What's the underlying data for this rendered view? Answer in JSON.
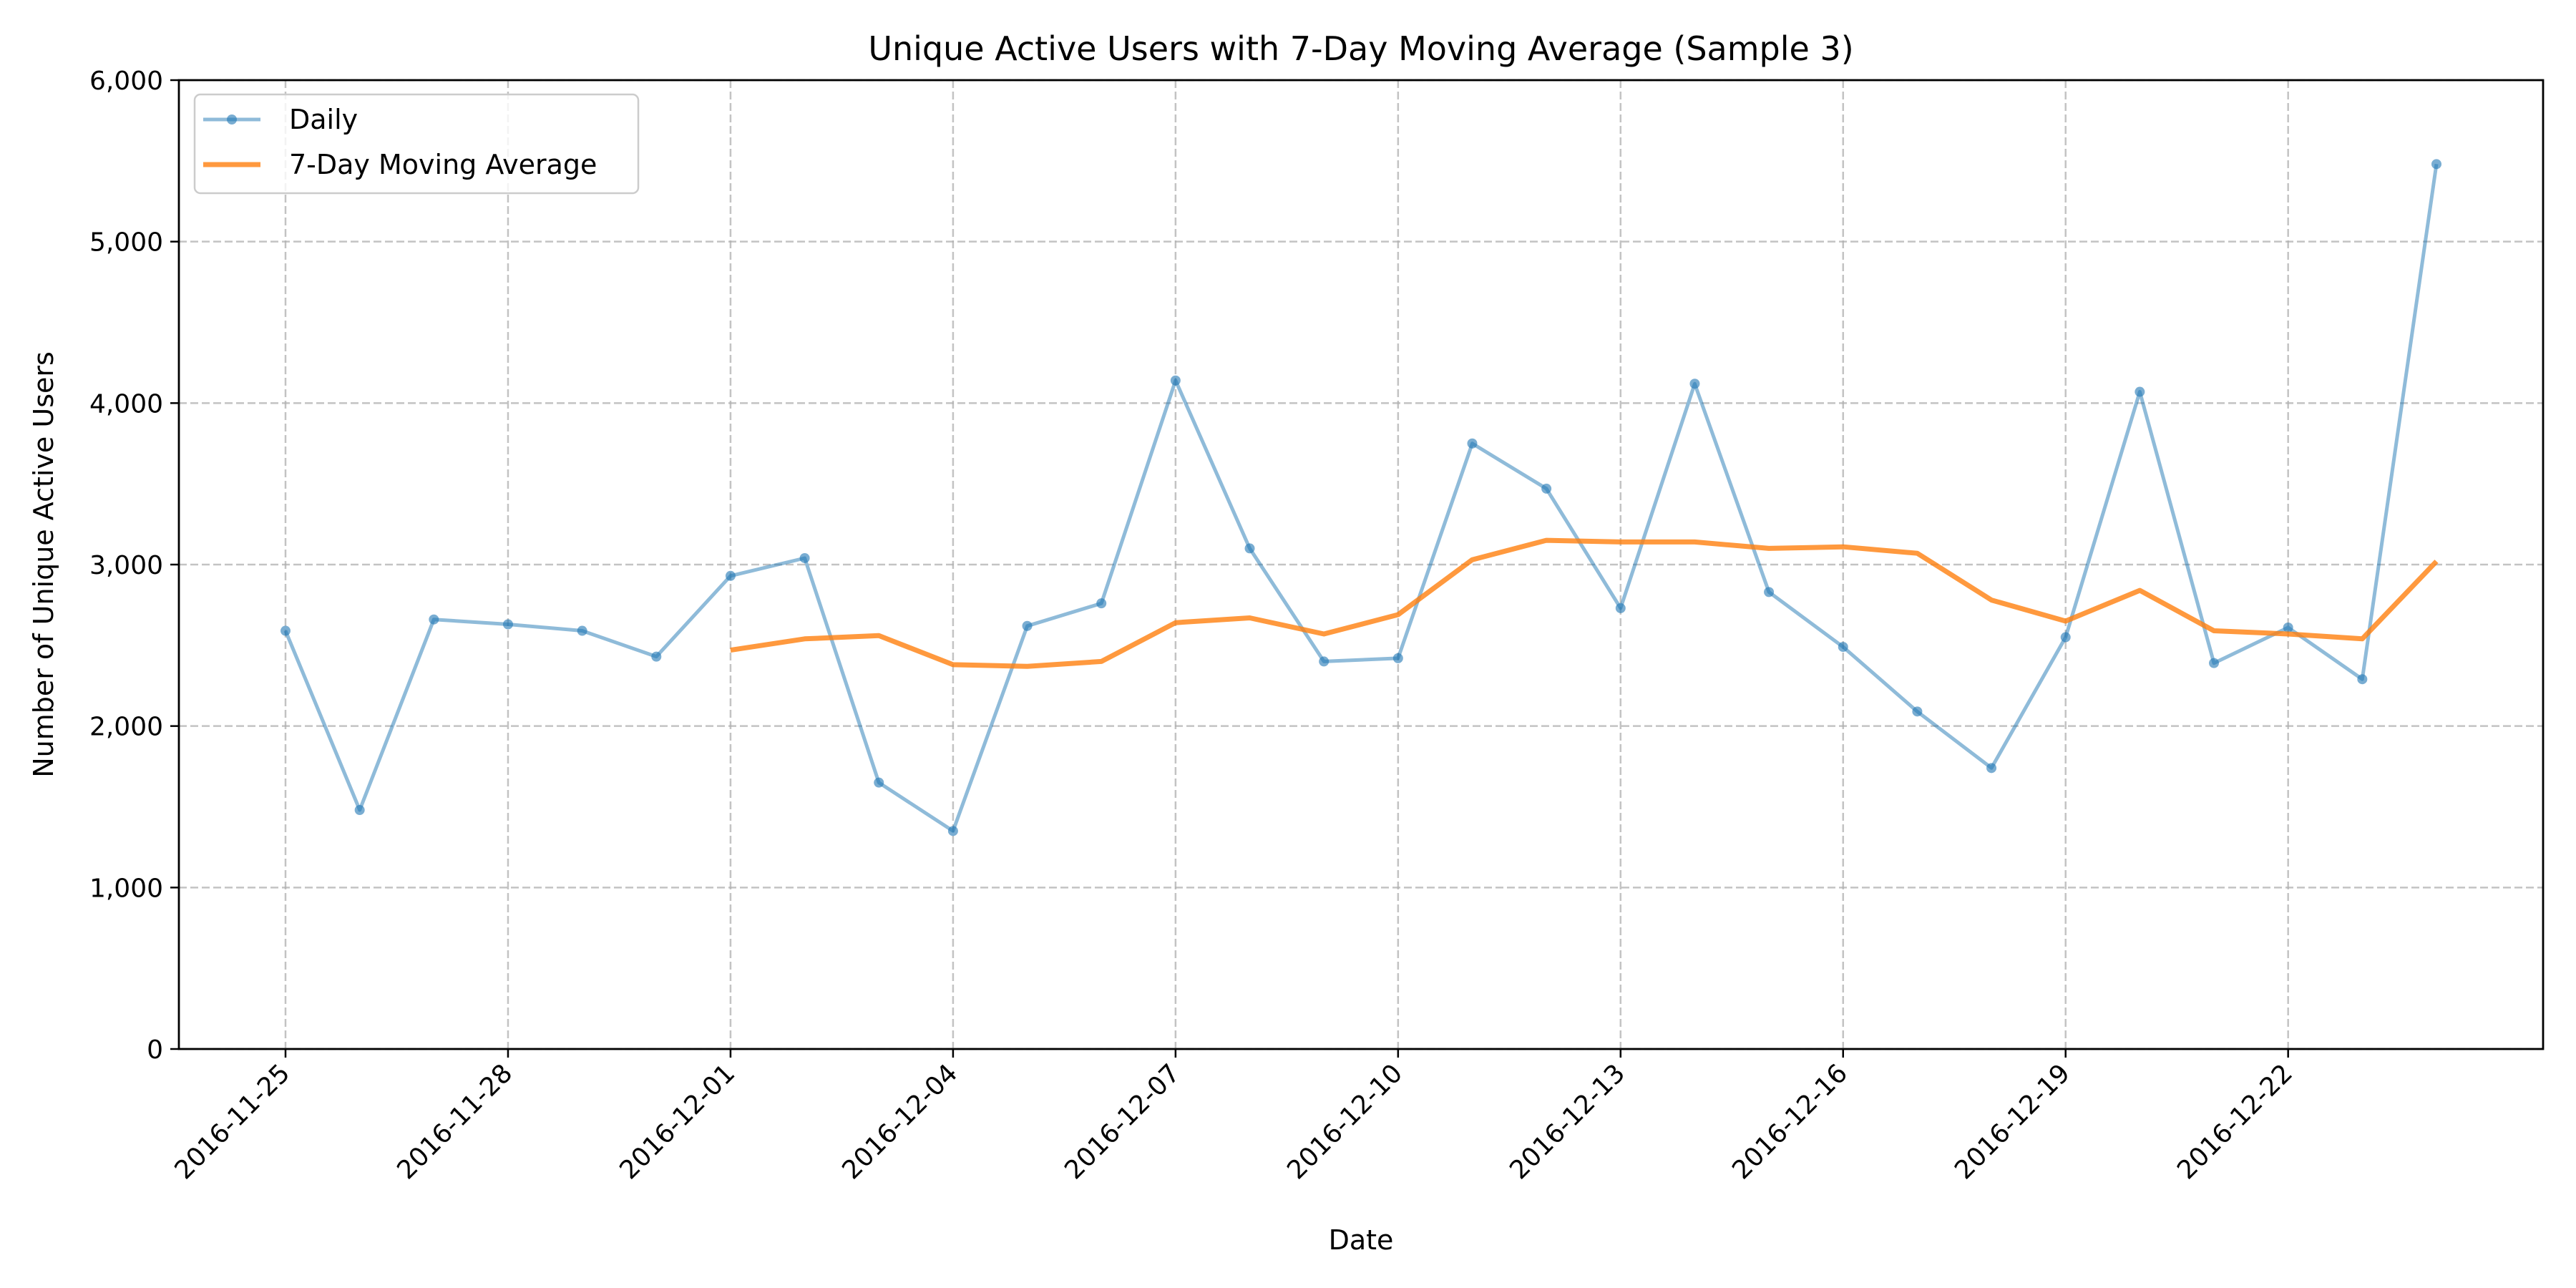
{
  "chart_data": {
    "type": "line",
    "title": "Unique Active Users with 7-Day Moving Average (Sample 3)",
    "xlabel": "Date",
    "ylabel": "Number of Unique Active Users",
    "x": [
      "2016-11-25",
      "2016-11-26",
      "2016-11-27",
      "2016-11-28",
      "2016-11-29",
      "2016-11-30",
      "2016-12-01",
      "2016-12-02",
      "2016-12-03",
      "2016-12-04",
      "2016-12-05",
      "2016-12-06",
      "2016-12-07",
      "2016-12-08",
      "2016-12-09",
      "2016-12-10",
      "2016-12-11",
      "2016-12-12",
      "2016-12-13",
      "2016-12-14",
      "2016-12-15",
      "2016-12-16",
      "2016-12-17",
      "2016-12-18",
      "2016-12-19",
      "2016-12-20",
      "2016-12-21",
      "2016-12-22",
      "2016-12-23",
      "2016-12-24"
    ],
    "xlim": [
      "2016-11-23T13:30",
      "2016-12-25T10:30"
    ],
    "ylim": [
      0,
      6000
    ],
    "xticks": [
      "2016-11-25",
      "2016-11-28",
      "2016-12-01",
      "2016-12-04",
      "2016-12-07",
      "2016-12-10",
      "2016-12-13",
      "2016-12-16",
      "2016-12-19",
      "2016-12-22"
    ],
    "yticks": [
      0,
      1000,
      2000,
      3000,
      4000,
      5000,
      6000
    ],
    "ytick_labels": [
      "0",
      "1,000",
      "2,000",
      "3,000",
      "4,000",
      "5,000",
      "6,000"
    ],
    "grid": true,
    "legend_position": "top-left",
    "series": [
      {
        "name": "Daily",
        "color": "#1f77b4",
        "marker": "circle",
        "values": [
          2590,
          1480,
          2660,
          2630,
          2590,
          2430,
          2930,
          3040,
          1650,
          1350,
          2620,
          2760,
          4140,
          3100,
          2400,
          2420,
          3750,
          3470,
          2730,
          4120,
          2830,
          2490,
          2090,
          1740,
          2550,
          4070,
          2390,
          2610,
          2290,
          5480
        ]
      },
      {
        "name": "7-Day Moving Average",
        "color": "#ff7f0e",
        "marker": "none",
        "values": [
          null,
          null,
          null,
          null,
          null,
          null,
          2470,
          2540,
          2560,
          2380,
          2370,
          2400,
          2640,
          2670,
          2570,
          2690,
          3030,
          3150,
          3140,
          3140,
          3100,
          3110,
          3070,
          2780,
          2650,
          2840,
          2590,
          2570,
          2540,
          3020
        ]
      }
    ]
  }
}
